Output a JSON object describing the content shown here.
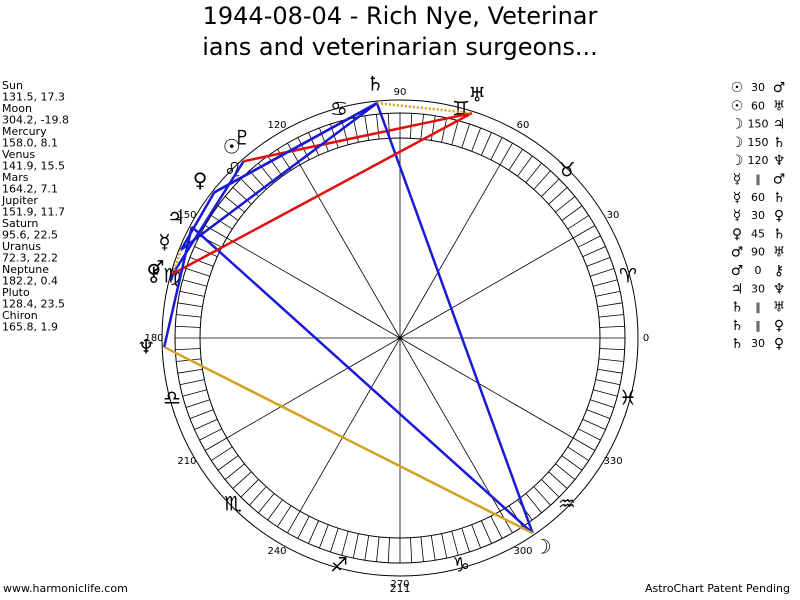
{
  "header": {
    "title_line1": "1944-08-04 - Rich Nye, Veterinar",
    "title_line2": "ians and veterinarian surgeons..."
  },
  "planets": [
    {
      "name": "Sun",
      "glyph": "☉",
      "lon": 131.5,
      "lat": 17.3,
      "label": "131.5, 17.3"
    },
    {
      "name": "Moon",
      "glyph": "☽",
      "lon": 304.2,
      "lat": -19.8,
      "label": "304.2, -19.8"
    },
    {
      "name": "Mercury",
      "glyph": "☿",
      "lon": 158.0,
      "lat": 8.1,
      "label": "158.0, 8.1"
    },
    {
      "name": "Venus",
      "glyph": "♀",
      "lon": 141.9,
      "lat": 15.5,
      "label": "141.9, 15.5"
    },
    {
      "name": "Mars",
      "glyph": "♂",
      "lon": 164.2,
      "lat": 7.1,
      "label": "164.2, 7.1"
    },
    {
      "name": "Jupiter",
      "glyph": "♃",
      "lon": 151.9,
      "lat": 11.7,
      "label": "151.9, 11.7"
    },
    {
      "name": "Saturn",
      "glyph": "♄",
      "lon": 95.6,
      "lat": 22.5,
      "label": "95.6, 22.5"
    },
    {
      "name": "Uranus",
      "glyph": "♅",
      "lon": 72.3,
      "lat": 22.2,
      "label": "72.3, 22.2"
    },
    {
      "name": "Neptune",
      "glyph": "♆",
      "lon": 182.2,
      "lat": 0.4,
      "label": "182.2, 0.4"
    },
    {
      "name": "Pluto",
      "glyph": "♇",
      "lon": 128.4,
      "lat": 23.5,
      "label": "128.4, 23.5"
    },
    {
      "name": "Chiron",
      "glyph": "⚷",
      "lon": 165.8,
      "lat": 1.9,
      "label": "165.8, 1.9"
    }
  ],
  "aspects": [
    {
      "p1": "☉",
      "aspect": 30,
      "p2": "♂",
      "color": "#1a1ad6"
    },
    {
      "p1": "☉",
      "aspect": 60,
      "p2": "♅",
      "color": "#e01010"
    },
    {
      "p1": "☽",
      "aspect": 150,
      "p2": "♃",
      "color": "#1a1ad6"
    },
    {
      "p1": "☽",
      "aspect": 150,
      "p2": "♄",
      "color": "#1a1ad6"
    },
    {
      "p1": "☽",
      "aspect": 120,
      "p2": "♆",
      "color": "#d4a020"
    },
    {
      "p1": "☿",
      "aspect": "‖",
      "p2": "♂",
      "color": "#d4a020"
    },
    {
      "p1": "☿",
      "aspect": 60,
      "p2": "♄",
      "color": "#1a1ad6"
    },
    {
      "p1": "☿",
      "aspect": 30,
      "p2": "♀",
      "color": "#1a1ad6"
    },
    {
      "p1": "♀",
      "aspect": 45,
      "p2": "♄",
      "color": "#1a1ad6"
    },
    {
      "p1": "♂",
      "aspect": 90,
      "p2": "♅",
      "color": "#e01010"
    },
    {
      "p1": "♂",
      "aspect": 0,
      "p2": "⚷",
      "color": "#1a1ad6"
    },
    {
      "p1": "♃",
      "aspect": 30,
      "p2": "♆",
      "color": "#1a1ad6"
    },
    {
      "p1": "♄",
      "aspect": "‖",
      "p2": "♅",
      "color": "#d4a020"
    },
    {
      "p1": "♄",
      "aspect": "‖",
      "p2": "♀",
      "color": "#1a1ad6"
    },
    {
      "p1": "♄",
      "aspect": 30,
      "p2": "♀",
      "color": "#1a1ad6"
    }
  ],
  "signs": [
    "♈",
    "♉",
    "♊",
    "♋",
    "♌",
    "♍",
    "♎",
    "♏",
    "♐",
    "♑",
    "♒",
    "♓"
  ],
  "degree_labels": [
    0,
    30,
    60,
    90,
    120,
    150,
    180,
    210,
    240,
    270,
    300,
    330
  ],
  "footer": {
    "left": "www.harmoniclife.com",
    "center": "211",
    "right": "AstroChart Patent Pending"
  }
}
